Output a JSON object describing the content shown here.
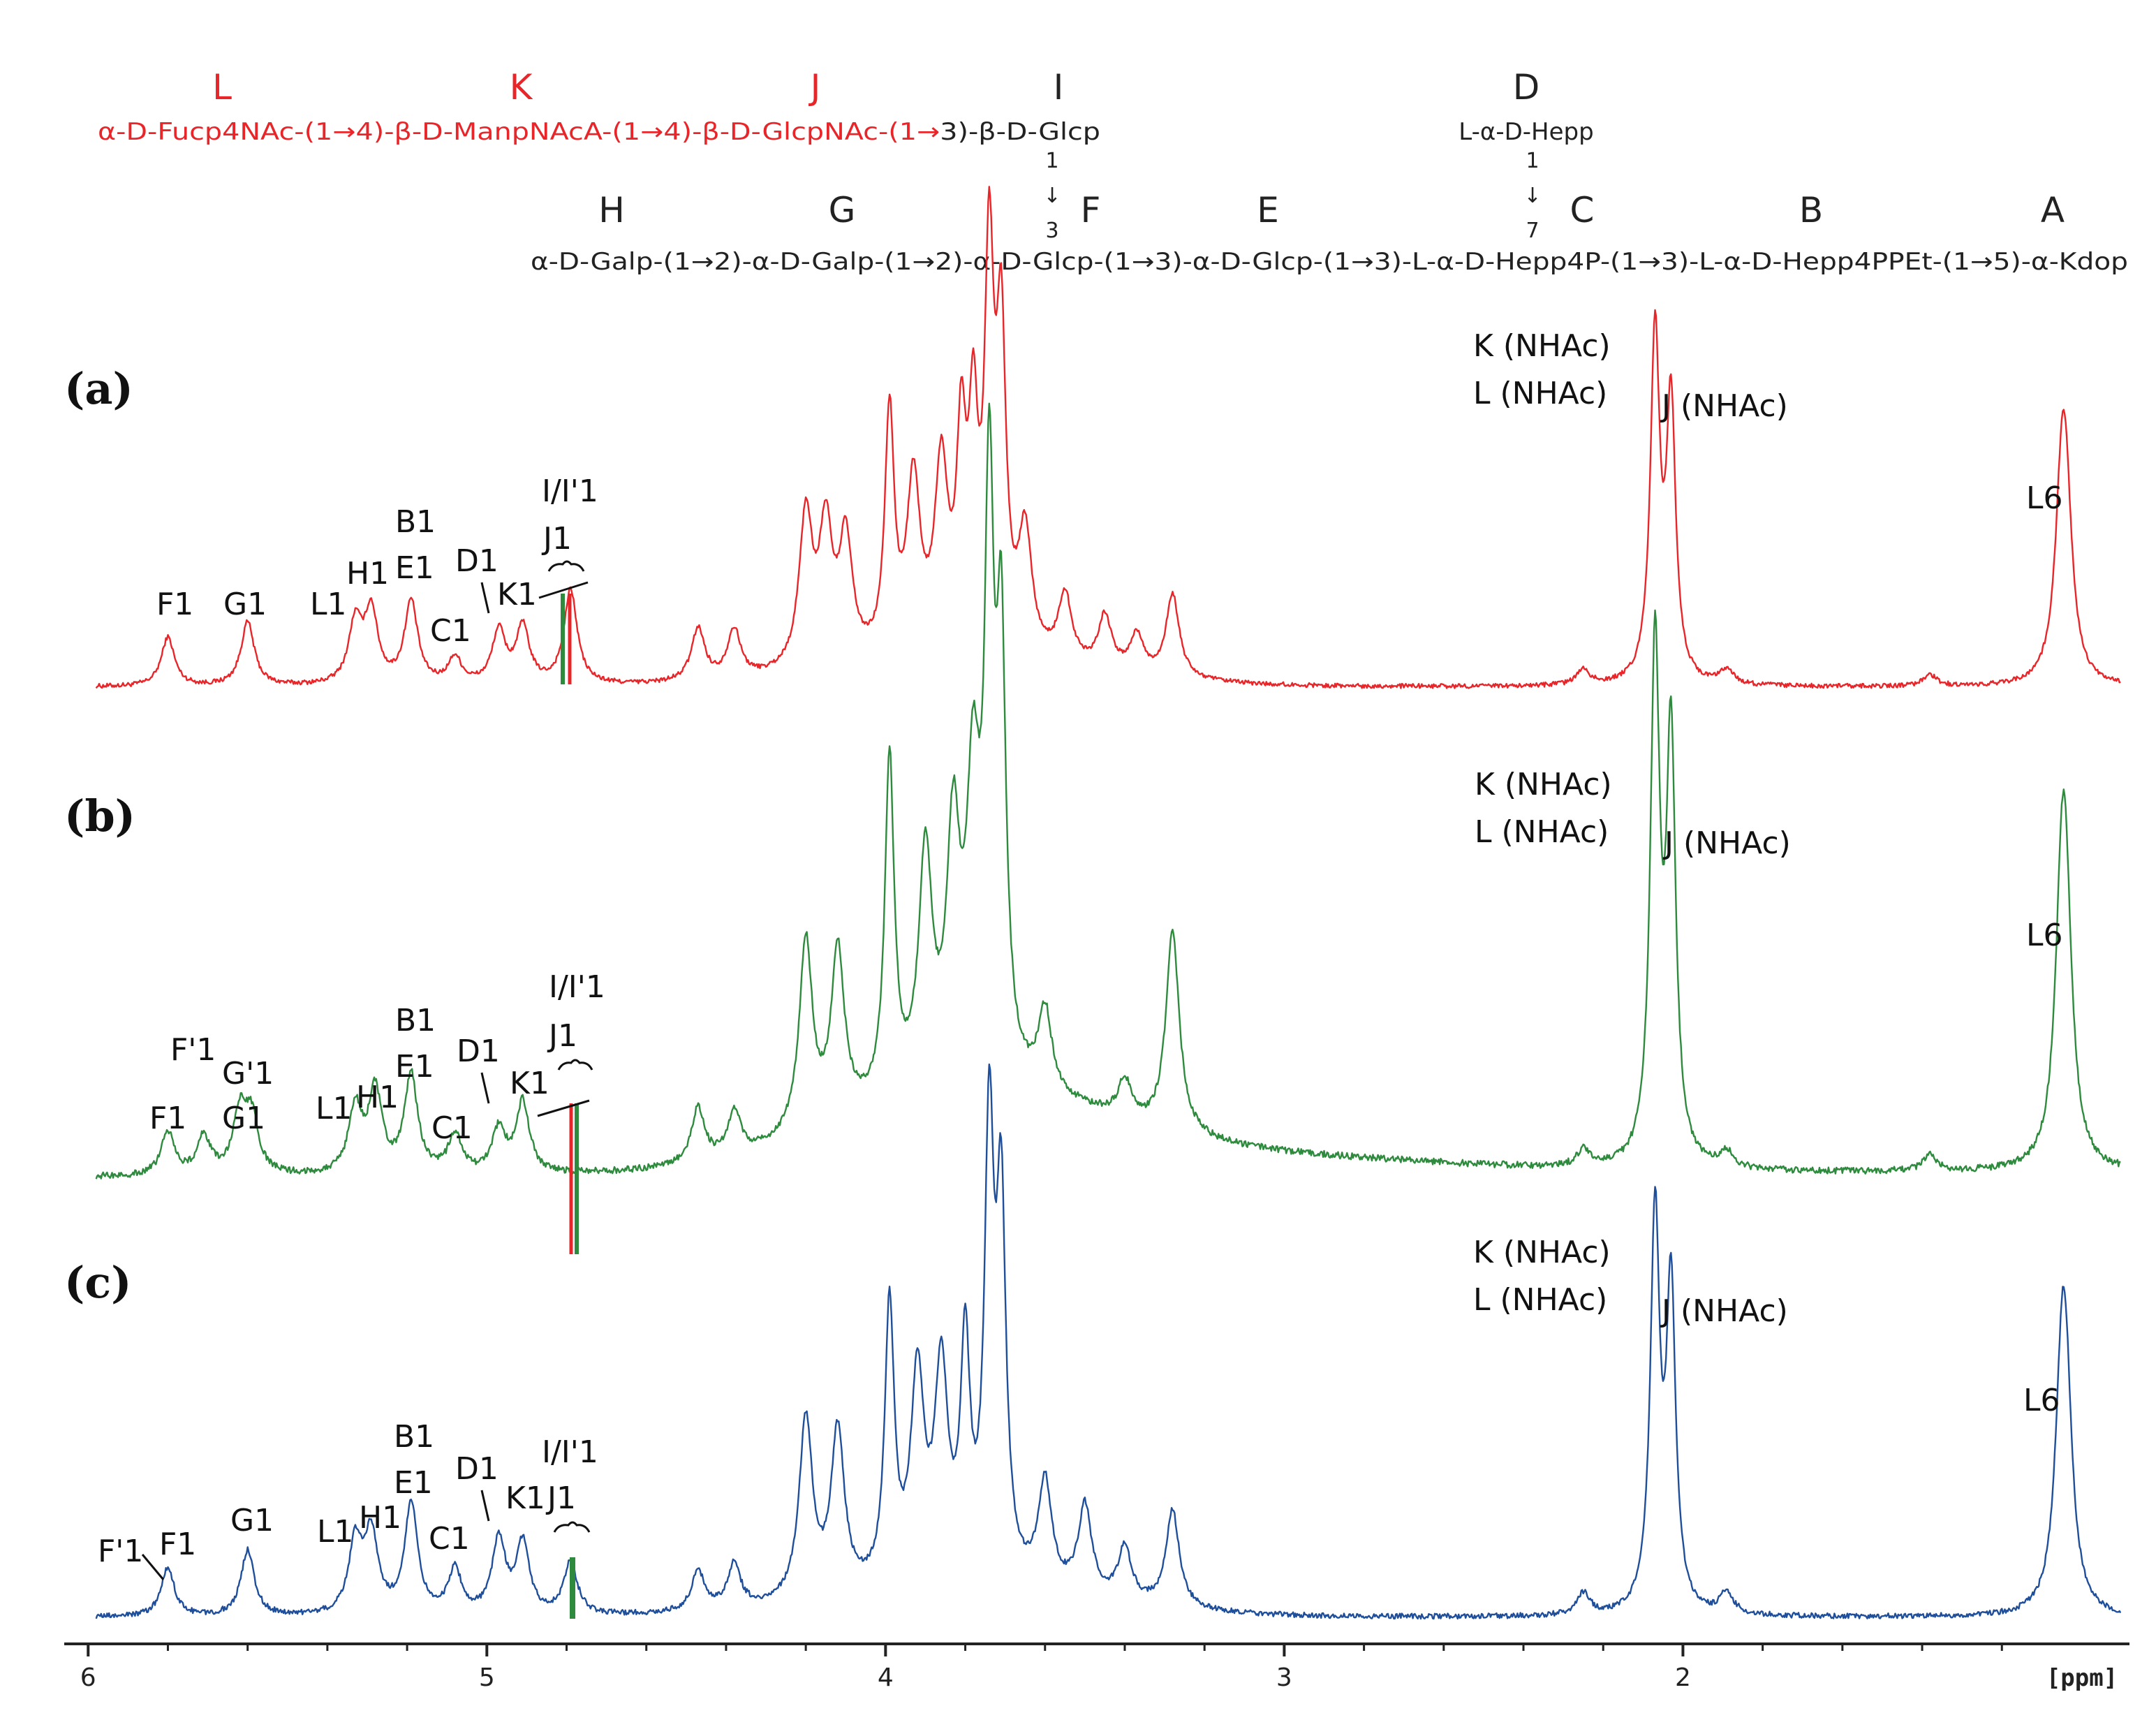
{
  "structure": {
    "top_chain": {
      "letters": [
        "L",
        "K",
        "J",
        "I"
      ],
      "red_part": "α-D-Fucp4NAc-(1→4)-β-D-ManpNAcA-(1→4)-β-D-GlcpNAc-(1→",
      "black_part": "3)-β-D-Glcp"
    },
    "branch_D": {
      "letter": "D",
      "text": "L-α-D-Hepp"
    },
    "link_I_F": {
      "top": "1",
      "arrow": "↓",
      "bottom": "3"
    },
    "link_D_C": {
      "top": "1",
      "arrow": "↓",
      "bottom": "7"
    },
    "main_chain": {
      "letters": [
        "H",
        "G",
        "F",
        "E",
        "C",
        "B",
        "A"
      ],
      "text": "α-D-Galp-(1→2)-α-D-Galp-(1→2)-α-D-Glcp-(1→3)-α-D-Glcp-(1→3)-L-α-D-Hepp4P-(1→3)-L-α-D-Hepp4PPEt-(1→5)-α-Kdop"
    },
    "colors": {
      "red": "#e8262a",
      "black": "#222222"
    }
  },
  "chart_data": {
    "type": "line",
    "x_axis": {
      "reversed": true,
      "xlim": [
        6.06,
        0.88
      ],
      "ticks": [
        6,
        5,
        4,
        3,
        2
      ],
      "tick_labels": [
        "6",
        "5",
        "4",
        "3",
        "2"
      ],
      "unit_label": "[ppm]"
    },
    "panels": [
      {
        "id": "a",
        "panel_label": "(a)",
        "color": "#e8262a",
        "solvent_color": "#2e8b3e",
        "peak_labels": [
          "F1",
          "G1",
          "L1",
          "H1",
          "B1",
          "E1",
          "C1",
          "D1",
          "K1",
          "J1",
          "I/I'1",
          "K (NHAc)",
          "L  (NHAc)",
          "J (NHAc)",
          "L6"
        ],
        "peaks": [
          {
            "ppm": 5.8,
            "height": 0.13
          },
          {
            "ppm": 5.6,
            "height": 0.17
          },
          {
            "ppm": 5.33,
            "height": 0.16
          },
          {
            "ppm": 5.29,
            "height": 0.19
          },
          {
            "ppm": 5.19,
            "height": 0.22
          },
          {
            "ppm": 5.08,
            "height": 0.07
          },
          {
            "ppm": 4.97,
            "height": 0.14
          },
          {
            "ppm": 4.91,
            "height": 0.15
          },
          {
            "ppm": 4.79,
            "height": 0.25
          },
          {
            "ppm": 4.47,
            "height": 0.14
          },
          {
            "ppm": 4.38,
            "height": 0.13
          },
          {
            "ppm": 4.2,
            "height": 0.4
          },
          {
            "ppm": 4.15,
            "height": 0.35
          },
          {
            "ppm": 4.1,
            "height": 0.32
          },
          {
            "ppm": 3.99,
            "height": 0.64
          },
          {
            "ppm": 3.93,
            "height": 0.45
          },
          {
            "ppm": 3.86,
            "height": 0.48
          },
          {
            "ppm": 3.81,
            "height": 0.52
          },
          {
            "ppm": 3.78,
            "height": 0.55
          },
          {
            "ppm": 3.74,
            "height": 1.0
          },
          {
            "ppm": 3.71,
            "height": 0.8
          },
          {
            "ppm": 3.65,
            "height": 0.32
          },
          {
            "ppm": 3.55,
            "height": 0.18
          },
          {
            "ppm": 3.45,
            "height": 0.14
          },
          {
            "ppm": 3.37,
            "height": 0.1
          },
          {
            "ppm": 3.28,
            "height": 0.22
          },
          {
            "ppm": 2.25,
            "height": 0.04
          },
          {
            "ppm": 2.07,
            "height": 0.92
          },
          {
            "ppm": 2.03,
            "height": 0.73
          },
          {
            "ppm": 1.89,
            "height": 0.04
          },
          {
            "ppm": 1.38,
            "height": 0.03
          },
          {
            "ppm": 1.05,
            "height": 0.4
          },
          {
            "ppm": 1.04,
            "height": 0.38
          }
        ]
      },
      {
        "id": "b",
        "panel_label": "(b)",
        "color": "#2e8b3e",
        "solvent_color": "#e8262a",
        "peak_labels": [
          "F'1",
          "F1",
          "G'1",
          "G1",
          "L1",
          "H1",
          "B1",
          "E1",
          "C1",
          "D1",
          "K1",
          "J1",
          "I/I'1",
          "K (NHAc)",
          "L  (NHAc)",
          "J (NHAc)",
          "L6"
        ],
        "peaks": [
          {
            "ppm": 5.8,
            "height": 0.08
          },
          {
            "ppm": 5.71,
            "height": 0.07
          },
          {
            "ppm": 5.62,
            "height": 0.11
          },
          {
            "ppm": 5.59,
            "height": 0.1
          },
          {
            "ppm": 5.33,
            "height": 0.12
          },
          {
            "ppm": 5.28,
            "height": 0.15
          },
          {
            "ppm": 5.19,
            "height": 0.18
          },
          {
            "ppm": 5.08,
            "height": 0.07
          },
          {
            "ppm": 4.97,
            "height": 0.08
          },
          {
            "ppm": 4.91,
            "height": 0.13
          },
          {
            "ppm": 4.47,
            "height": 0.1
          },
          {
            "ppm": 4.38,
            "height": 0.08
          },
          {
            "ppm": 4.2,
            "height": 0.35
          },
          {
            "ppm": 4.12,
            "height": 0.31
          },
          {
            "ppm": 3.99,
            "height": 0.62
          },
          {
            "ppm": 3.9,
            "height": 0.42
          },
          {
            "ppm": 3.83,
            "height": 0.44
          },
          {
            "ppm": 3.78,
            "height": 0.5
          },
          {
            "ppm": 3.74,
            "height": 1.0
          },
          {
            "ppm": 3.71,
            "height": 0.75
          },
          {
            "ppm": 3.6,
            "height": 0.15
          },
          {
            "ppm": 3.4,
            "height": 0.07
          },
          {
            "ppm": 3.28,
            "height": 0.37
          },
          {
            "ppm": 2.25,
            "height": 0.03
          },
          {
            "ppm": 2.07,
            "height": 0.94
          },
          {
            "ppm": 2.03,
            "height": 0.77
          },
          {
            "ppm": 1.89,
            "height": 0.03
          },
          {
            "ppm": 1.38,
            "height": 0.03
          },
          {
            "ppm": 1.05,
            "height": 0.38
          },
          {
            "ppm": 1.04,
            "height": 0.36
          }
        ]
      },
      {
        "id": "c",
        "panel_label": "(c)",
        "color": "#1f4f9a",
        "solvent_color": "#2e8b3e",
        "peak_labels": [
          "F'1",
          "F1",
          "G1",
          "L1",
          "H1",
          "B1",
          "E1",
          "C1",
          "D1",
          "K1",
          "J1",
          "I/I'1",
          "K (NHAc)",
          "L  (NHAc)",
          "J (NHAc)",
          "L6"
        ],
        "peaks": [
          {
            "ppm": 5.8,
            "height": 0.11
          },
          {
            "ppm": 5.6,
            "height": 0.15
          },
          {
            "ppm": 5.33,
            "height": 0.16
          },
          {
            "ppm": 5.29,
            "height": 0.18
          },
          {
            "ppm": 5.19,
            "height": 0.25
          },
          {
            "ppm": 5.08,
            "height": 0.1
          },
          {
            "ppm": 4.97,
            "height": 0.17
          },
          {
            "ppm": 4.91,
            "height": 0.16
          },
          {
            "ppm": 4.79,
            "height": 0.12
          },
          {
            "ppm": 4.47,
            "height": 0.09
          },
          {
            "ppm": 4.38,
            "height": 0.1
          },
          {
            "ppm": 4.2,
            "height": 0.41
          },
          {
            "ppm": 4.12,
            "height": 0.37
          },
          {
            "ppm": 3.99,
            "height": 0.63
          },
          {
            "ppm": 3.92,
            "height": 0.46
          },
          {
            "ppm": 3.86,
            "height": 0.47
          },
          {
            "ppm": 3.8,
            "height": 0.51
          },
          {
            "ppm": 3.74,
            "height": 1.0
          },
          {
            "ppm": 3.71,
            "height": 0.82
          },
          {
            "ppm": 3.6,
            "height": 0.24
          },
          {
            "ppm": 3.5,
            "height": 0.2
          },
          {
            "ppm": 3.4,
            "height": 0.12
          },
          {
            "ppm": 3.28,
            "height": 0.22
          },
          {
            "ppm": 2.25,
            "height": 0.05
          },
          {
            "ppm": 2.07,
            "height": 0.9
          },
          {
            "ppm": 2.03,
            "height": 0.73
          },
          {
            "ppm": 1.89,
            "height": 0.05
          },
          {
            "ppm": 1.05,
            "height": 0.41
          },
          {
            "ppm": 1.04,
            "height": 0.39
          }
        ]
      }
    ]
  }
}
